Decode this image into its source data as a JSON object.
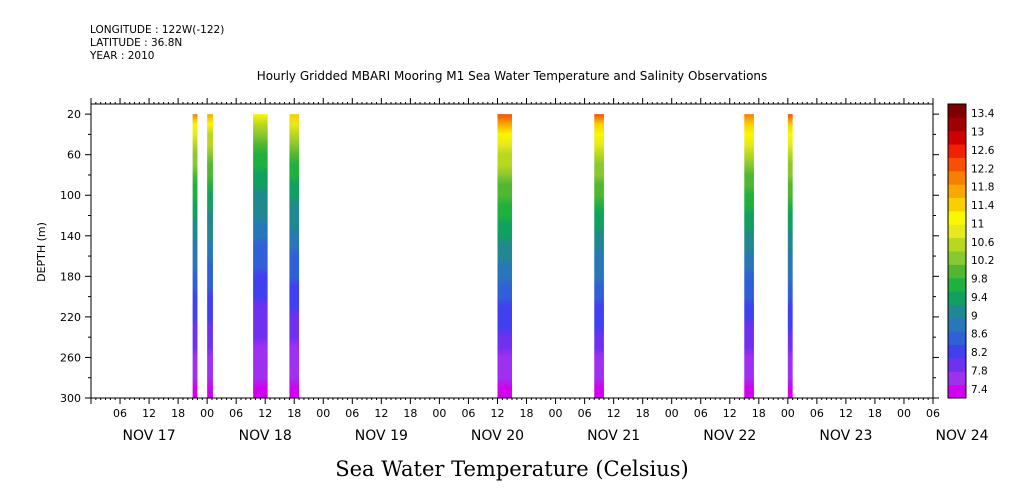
{
  "header": {
    "longitude": "LONGITUDE : 122W(-122)",
    "latitude": "LATITUDE : 36.8N",
    "year": "YEAR : 2010"
  },
  "chart_data": {
    "type": "heatmap",
    "title": "Hourly Gridded MBARI Mooring M1 Sea Water Temperature and Salinity Observations",
    "xlabel_main": "Sea Water Temperature (Celsius)",
    "ylabel": "DEPTH (m)",
    "x_range_hours": [
      0,
      174
    ],
    "x_tick_labels": [
      "06",
      "12",
      "18",
      "00",
      "06",
      "12",
      "18",
      "00",
      "06",
      "12",
      "18",
      "00",
      "06",
      "12",
      "18",
      "00",
      "06",
      "12",
      "18",
      "00",
      "06",
      "12",
      "18",
      "00",
      "06",
      "12",
      "18",
      "00",
      "06"
    ],
    "x_day_labels": [
      "NOV 17",
      "NOV 18",
      "NOV 19",
      "NOV 20",
      "NOV 21",
      "NOV 22",
      "NOV 23",
      "NOV 24"
    ],
    "ylim": [
      300,
      10
    ],
    "y_ticks": [
      20,
      60,
      100,
      140,
      180,
      220,
      260,
      300
    ],
    "y_tick_labels": [
      "20",
      "60",
      "100",
      "140",
      "180",
      "220",
      "260",
      "300"
    ],
    "colorbar": {
      "levels": [
        "13.4",
        "13",
        "12.6",
        "12.2",
        "11.8",
        "11.4",
        "11",
        "10.6",
        "10.2",
        "9.8",
        "9.4",
        "9",
        "8.6",
        "8.2",
        "7.8",
        "7.4"
      ],
      "min": 7.4,
      "max": 13.4,
      "colors": [
        "#d200f0",
        "#a030f0",
        "#7030f0",
        "#4040f0",
        "#3060d8",
        "#2878b8",
        "#208890",
        "#10a060",
        "#20b040",
        "#50b830",
        "#88c830",
        "#b8d820",
        "#e8e820",
        "#f8f800",
        "#f8d000",
        "#f8a800",
        "#f88000",
        "#f85000",
        "#f02000",
        "#d00000",
        "#a00000",
        "#800000"
      ]
    },
    "bursts": [
      {
        "start_hour": 21,
        "end_hour": 22,
        "surface_temp": 11.8
      },
      {
        "start_hour": 24,
        "end_hour": 25.2,
        "surface_temp": 11.6
      },
      {
        "start_hour": 33.5,
        "end_hour": 36.5,
        "surface_temp": 11.0
      },
      {
        "start_hour": 41,
        "end_hour": 43,
        "surface_temp": 11.3
      },
      {
        "start_hour": 84,
        "end_hour": 87,
        "surface_temp": 12.3
      },
      {
        "start_hour": 104,
        "end_hour": 106,
        "surface_temp": 12.2
      },
      {
        "start_hour": 135,
        "end_hour": 137,
        "surface_temp": 12.0
      },
      {
        "start_hour": 144,
        "end_hour": 145,
        "surface_temp": 12.2
      }
    ]
  }
}
